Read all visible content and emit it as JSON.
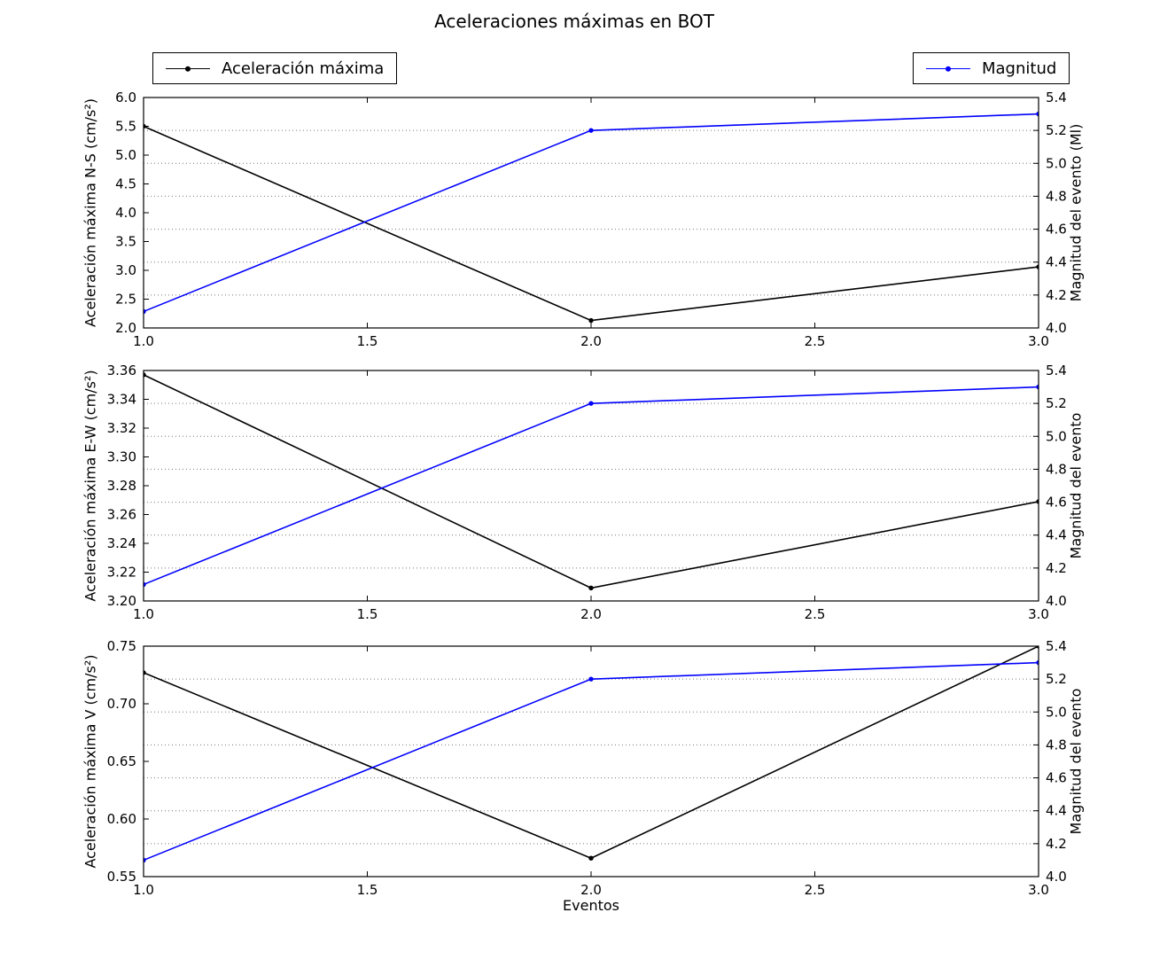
{
  "title": "Aceleraciones máximas en BOT",
  "xlabel": "Eventos",
  "colors": {
    "acceleration_line": "#000000",
    "magnitude_line": "#0000ff",
    "grid": "#777777",
    "background": "#ffffff"
  },
  "legends": [
    {
      "label": "Aceleración máxima",
      "color": "#000000"
    },
    {
      "label": "Magnitud",
      "color": "#0000ff"
    }
  ],
  "chart_data": [
    {
      "type": "line",
      "subplot": "N-S",
      "x": [
        1.0,
        2.0,
        3.0
      ],
      "xlim": [
        1.0,
        3.0
      ],
      "xtick_values": [
        1.0,
        1.5,
        2.0,
        2.5,
        3.0
      ],
      "xtick_labels": [
        "1.0",
        "1.5",
        "2.0",
        "2.5",
        "3.0"
      ],
      "left_axis": {
        "label": "Aceleración máxima N-S (cm/s²)",
        "lim": [
          2.0,
          6.0
        ],
        "tick_values": [
          2.0,
          2.5,
          3.0,
          3.5,
          4.0,
          4.5,
          5.0,
          5.5,
          6.0
        ],
        "tick_labels": [
          "2.0",
          "2.5",
          "3.0",
          "3.5",
          "4.0",
          "4.5",
          "5.0",
          "5.5",
          "6.0"
        ]
      },
      "right_axis": {
        "label": "Magnitud del evento (Ml)",
        "lim": [
          4.0,
          5.4
        ],
        "tick_values": [
          4.0,
          4.2,
          4.4,
          4.6,
          4.8,
          5.0,
          5.2,
          5.4
        ],
        "tick_labels": [
          "4.0",
          "4.2",
          "4.4",
          "4.6",
          "4.8",
          "5.0",
          "5.2",
          "5.4"
        ]
      },
      "series": [
        {
          "name": "Aceleración máxima",
          "axis": "left",
          "color": "#000000",
          "marker": "circle",
          "values": [
            5.5,
            2.13,
            3.06
          ]
        },
        {
          "name": "Magnitud",
          "axis": "right",
          "color": "#0000ff",
          "marker": "circle",
          "values": [
            4.1,
            5.2,
            5.3
          ]
        }
      ],
      "grid": {
        "horizontal": true,
        "vertical": false,
        "style": "dotted",
        "follows": "right_axis"
      }
    },
    {
      "type": "line",
      "subplot": "E-W",
      "x": [
        1.0,
        2.0,
        3.0
      ],
      "xlim": [
        1.0,
        3.0
      ],
      "xtick_values": [
        1.0,
        1.5,
        2.0,
        2.5,
        3.0
      ],
      "xtick_labels": [
        "1.0",
        "1.5",
        "2.0",
        "2.5",
        "3.0"
      ],
      "left_axis": {
        "label": "Aceleración máxima E-W (cm/s²)",
        "lim": [
          3.2,
          3.36
        ],
        "tick_values": [
          3.2,
          3.22,
          3.24,
          3.26,
          3.28,
          3.3,
          3.32,
          3.34,
          3.36
        ],
        "tick_labels": [
          "3.20",
          "3.22",
          "3.24",
          "3.26",
          "3.28",
          "3.30",
          "3.32",
          "3.34",
          "3.36"
        ]
      },
      "right_axis": {
        "label": "Magnitud del evento",
        "lim": [
          4.0,
          5.4
        ],
        "tick_values": [
          4.0,
          4.2,
          4.4,
          4.6,
          4.8,
          5.0,
          5.2,
          5.4
        ],
        "tick_labels": [
          "4.0",
          "4.2",
          "4.4",
          "4.6",
          "4.8",
          "5.0",
          "5.2",
          "5.4"
        ]
      },
      "series": [
        {
          "name": "Aceleración máxima",
          "axis": "left",
          "color": "#000000",
          "marker": "circle",
          "values": [
            3.357,
            3.209,
            3.269
          ]
        },
        {
          "name": "Magnitud",
          "axis": "right",
          "color": "#0000ff",
          "marker": "circle",
          "values": [
            4.1,
            5.2,
            5.3
          ]
        }
      ],
      "grid": {
        "horizontal": true,
        "vertical": false,
        "style": "dotted",
        "follows": "right_axis"
      }
    },
    {
      "type": "line",
      "subplot": "V",
      "x": [
        1.0,
        2.0,
        3.0
      ],
      "xlim": [
        1.0,
        3.0
      ],
      "xtick_values": [
        1.0,
        1.5,
        2.0,
        2.5,
        3.0
      ],
      "xtick_labels": [
        "1.0",
        "1.5",
        "2.0",
        "2.5",
        "3.0"
      ],
      "left_axis": {
        "label": "Aceleración máxima V (cm/s²)",
        "lim": [
          0.55,
          0.75
        ],
        "tick_values": [
          0.55,
          0.6,
          0.65,
          0.7,
          0.75
        ],
        "tick_labels": [
          "0.55",
          "0.60",
          "0.65",
          "0.70",
          "0.75"
        ]
      },
      "right_axis": {
        "label": "Magnitud del evento",
        "lim": [
          4.0,
          5.4
        ],
        "tick_values": [
          4.0,
          4.2,
          4.4,
          4.6,
          4.8,
          5.0,
          5.2,
          5.4
        ],
        "tick_labels": [
          "4.0",
          "4.2",
          "4.4",
          "4.6",
          "4.8",
          "5.0",
          "5.2",
          "5.4"
        ]
      },
      "series": [
        {
          "name": "Aceleración máxima",
          "axis": "left",
          "color": "#000000",
          "marker": "circle",
          "values": [
            0.727,
            0.566,
            0.75
          ]
        },
        {
          "name": "Magnitud",
          "axis": "right",
          "color": "#0000ff",
          "marker": "circle",
          "values": [
            4.1,
            5.2,
            5.3
          ]
        }
      ],
      "grid": {
        "horizontal": true,
        "vertical": false,
        "style": "dotted",
        "follows": "right_axis"
      }
    }
  ]
}
